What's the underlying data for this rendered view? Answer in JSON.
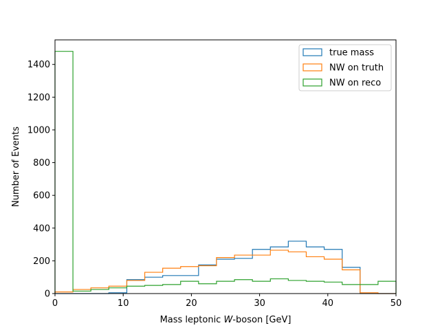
{
  "chart_data": {
    "type": "step-histogram",
    "xlabel": {
      "prefix": "Mass leptonic ",
      "italic": "W",
      "suffix": "-boson [GeV]"
    },
    "ylabel": "Number of Events",
    "xlim": [
      0,
      50
    ],
    "ylim": [
      0,
      1550
    ],
    "xticks": [
      0,
      10,
      20,
      30,
      40,
      50
    ],
    "yticks": [
      0,
      200,
      400,
      600,
      800,
      1000,
      1200,
      1400
    ],
    "legend_position": "top-right",
    "bin_edges": [
      0,
      2.63,
      5.26,
      7.89,
      10.53,
      13.16,
      15.79,
      18.42,
      21.05,
      23.68,
      26.32,
      28.95,
      31.58,
      34.21,
      36.84,
      39.47,
      42.11,
      44.74,
      47.37,
      50
    ],
    "series": [
      {
        "name": "true mass",
        "color": "#1f77b4",
        "values": [
          0,
          0,
          0,
          5,
          85,
          100,
          110,
          110,
          175,
          210,
          215,
          270,
          285,
          320,
          285,
          270,
          160,
          0,
          0
        ]
      },
      {
        "name": "NW on truth",
        "color": "#ff7f0e",
        "values": [
          10,
          25,
          35,
          45,
          80,
          130,
          155,
          165,
          170,
          220,
          235,
          235,
          265,
          255,
          225,
          210,
          145,
          5,
          0
        ]
      },
      {
        "name": "NW on reco",
        "color": "#2ca02c",
        "values": [
          1480,
          15,
          25,
          35,
          45,
          50,
          55,
          75,
          60,
          75,
          85,
          75,
          90,
          80,
          75,
          70,
          55,
          55,
          75
        ]
      }
    ]
  }
}
